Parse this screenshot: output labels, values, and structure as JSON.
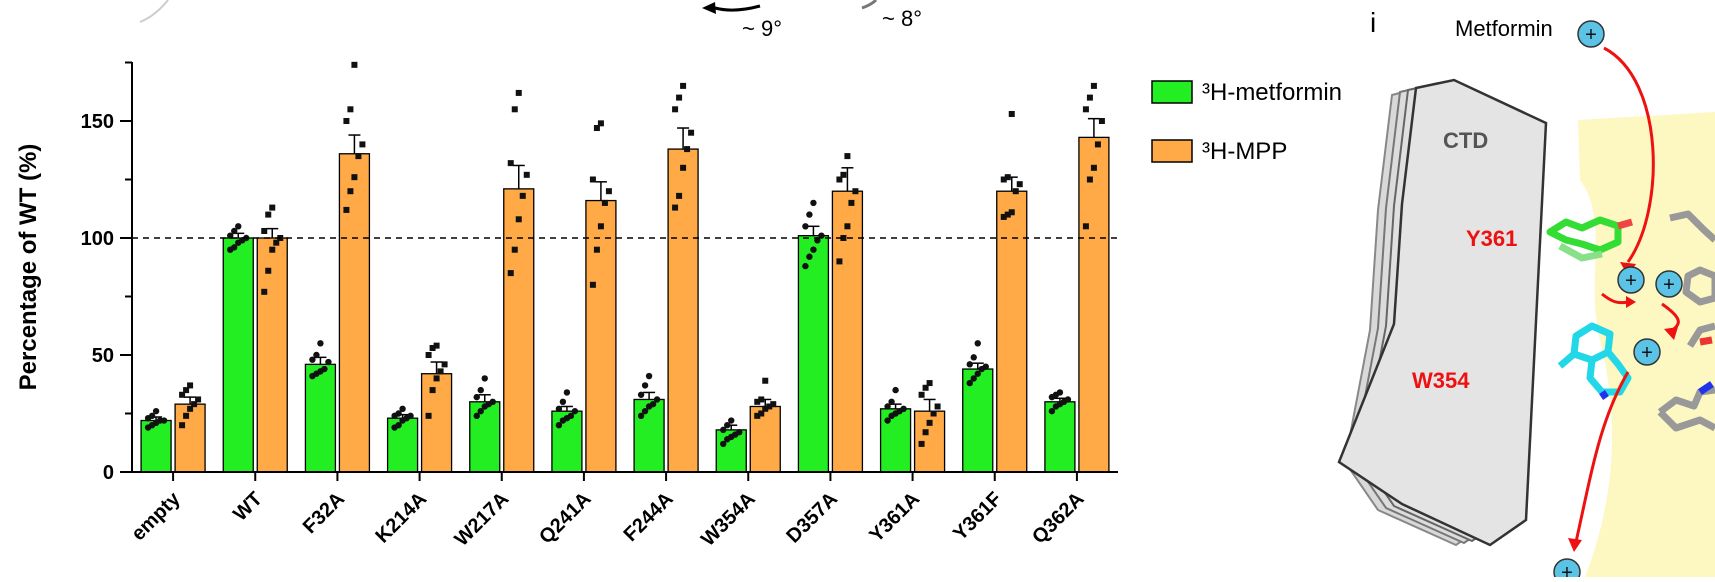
{
  "colors": {
    "metformin": "#22ee22",
    "mpp": "#ffa947",
    "arrow_red": "#ee1111",
    "membrane": "#fdf7c2",
    "cation": "#5bc3e6"
  },
  "top_labels": {
    "angle_left": "~ 9°",
    "angle_right": "~ 8°"
  },
  "panel_i": {
    "panel_label": "i",
    "metformin_label": "Metformin",
    "domain_label": "CTD",
    "residue_1": "Y361",
    "residue_2": "W354",
    "cation_symbol": "+"
  },
  "chart_data": {
    "type": "bar",
    "categories": [
      "empty",
      "WT",
      "F32A",
      "K214A",
      "W217A",
      "Q241A",
      "F244A",
      "W354A",
      "D357A",
      "Y361A",
      "Y361F",
      "Q362A"
    ],
    "series": [
      {
        "name": "³H-metformin",
        "values": [
          22,
          100,
          46,
          23,
          30,
          26,
          31,
          18,
          101,
          27,
          44,
          30
        ],
        "errors": [
          1.5,
          2,
          3,
          1.5,
          3,
          2,
          3,
          2,
          4,
          2,
          2.5,
          1.5
        ],
        "points": [
          [
            19,
            20,
            21,
            22,
            22,
            23,
            24,
            26
          ],
          [
            95,
            96,
            98,
            99,
            100,
            101,
            103,
            105
          ],
          [
            41,
            42,
            43,
            44,
            47,
            48,
            50,
            55
          ],
          [
            19,
            20,
            22,
            23,
            24,
            24,
            25,
            27
          ],
          [
            24,
            26,
            28,
            29,
            30,
            32,
            35,
            40
          ],
          [
            20,
            22,
            23,
            24,
            26,
            27,
            30,
            34
          ],
          [
            24,
            26,
            28,
            29,
            31,
            33,
            37,
            41
          ],
          [
            12,
            14,
            15,
            16,
            17,
            18,
            20,
            22
          ],
          [
            88,
            92,
            95,
            99,
            101,
            105,
            110,
            115
          ],
          [
            22,
            24,
            25,
            26,
            27,
            28,
            30,
            35
          ],
          [
            38,
            40,
            42,
            44,
            45,
            46,
            49,
            55
          ],
          [
            26,
            28,
            29,
            30,
            31,
            32,
            33,
            34
          ]
        ]
      },
      {
        "name": "³H-MPP",
        "values": [
          29,
          100,
          136,
          42,
          121,
          116,
          138,
          28,
          120,
          26,
          120,
          143
        ],
        "errors": [
          3,
          4,
          8,
          5,
          10,
          8,
          9,
          3,
          10,
          5,
          6,
          8
        ],
        "points": [
          [
            20,
            24,
            27,
            29,
            31,
            33,
            35,
            37
          ],
          [
            77,
            86,
            95,
            98,
            100,
            103,
            110,
            113
          ],
          [
            112,
            120,
            126,
            135,
            140,
            150,
            155,
            174
          ],
          [
            24,
            35,
            40,
            43,
            46,
            50,
            53,
            54
          ],
          [
            85,
            95,
            108,
            118,
            127,
            132,
            155,
            162
          ],
          [
            80,
            95,
            105,
            115,
            120,
            125,
            147,
            149
          ],
          [
            113,
            118,
            130,
            138,
            145,
            155,
            160,
            165
          ],
          [
            24,
            25,
            27,
            28,
            29,
            30,
            31,
            39
          ],
          [
            90,
            100,
            105,
            115,
            120,
            125,
            127,
            135
          ],
          [
            12,
            17,
            21,
            25,
            28,
            33,
            36,
            38
          ],
          [
            109,
            110,
            111,
            120,
            123,
            125,
            126,
            153
          ],
          [
            105,
            125,
            130,
            140,
            150,
            155,
            160,
            165
          ]
        ]
      }
    ],
    "ylabel": "Percentage of WT (%)",
    "ylim": [
      0,
      175
    ],
    "yticks": [
      "0",
      "50",
      "100",
      "150"
    ],
    "yticks_num": [
      0,
      50,
      100,
      150
    ],
    "reference_line": 100,
    "legend_position": "right",
    "grid": false
  }
}
